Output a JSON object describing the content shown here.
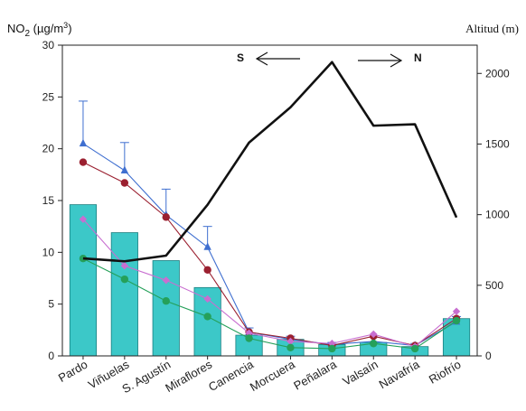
{
  "chart_data": {
    "type": "bar",
    "title": "",
    "ylabel": {
      "prefix": "NO",
      "sub": "2",
      "mid": " (µg/m",
      "sup": "3",
      "suffix": ")"
    },
    "y2label": "Altitud (m)",
    "ylim": [
      0,
      30
    ],
    "y2lim": [
      0,
      2200
    ],
    "yticks": [
      0,
      5,
      10,
      15,
      20,
      25,
      30
    ],
    "y2ticks": [
      0,
      500,
      1000,
      1500,
      2000
    ],
    "categories": [
      "Pardo",
      "Viñuelas",
      "S. Agustín",
      "Miraflores",
      "Canencia",
      "Morcuera",
      "Peñalara",
      "Valsaín",
      "Navafría",
      "Riofrío"
    ],
    "bar_series": {
      "color": "#3cc8c8",
      "values": [
        14.6,
        11.9,
        9.2,
        6.6,
        2.0,
        1.6,
        1.1,
        1.3,
        0.9,
        3.6
      ]
    },
    "line_series": [
      {
        "marker": "triangle",
        "color": "#3f6fd0",
        "values": [
          20.5,
          17.9,
          13.6,
          10.5,
          2.3,
          1.6,
          1.1,
          1.4,
          1.0,
          3.3
        ],
        "err": [
          4.1,
          2.7,
          2.5,
          2.0,
          0.4,
          0.3,
          0.2,
          0.4,
          0.2,
          0.5
        ]
      },
      {
        "marker": "circle",
        "color": "#9b2030",
        "values": [
          18.7,
          16.7,
          13.4,
          8.3,
          2.3,
          1.7,
          1.0,
          1.9,
          1.0,
          3.6
        ],
        "err": [
          0,
          0,
          0,
          0,
          0,
          0,
          0,
          0,
          0,
          0
        ]
      },
      {
        "marker": "diamond",
        "color": "#c86ed0",
        "values": [
          13.2,
          8.7,
          7.3,
          5.5,
          2.2,
          1.4,
          1.2,
          2.1,
          0.9,
          4.3
        ],
        "err": [
          0,
          0,
          0,
          0,
          0,
          0,
          0,
          0,
          0,
          0
        ]
      },
      {
        "marker": "circle",
        "color": "#25a05a",
        "values": [
          9.4,
          7.4,
          5.3,
          3.8,
          1.7,
          0.8,
          0.7,
          1.2,
          0.7,
          3.4
        ],
        "err": [
          0,
          0,
          0,
          0,
          0,
          0,
          0,
          0,
          0,
          0
        ]
      }
    ],
    "altitude_series": {
      "color": "#111111",
      "values": [
        690,
        670,
        710,
        1070,
        1510,
        1760,
        2080,
        1630,
        1640,
        980
      ]
    },
    "direction": {
      "south": "S",
      "north": "N"
    },
    "grid": false,
    "legend": "none"
  }
}
